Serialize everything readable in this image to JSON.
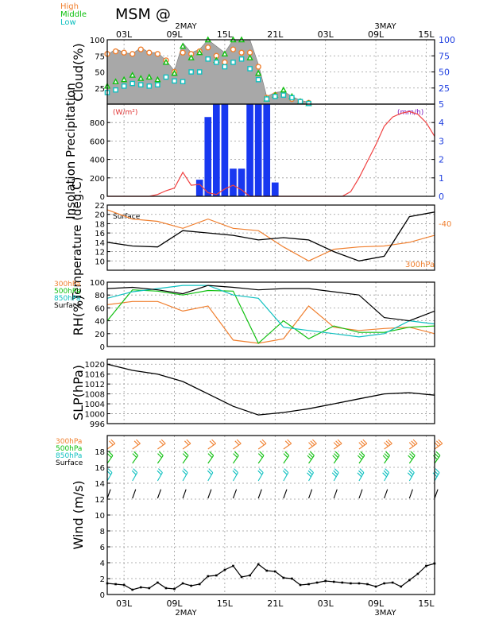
{
  "header": {
    "title": "MSM @",
    "day1_label": "2MAY",
    "day2_label": "3MAY"
  },
  "time_axis": {
    "hours_start": 0,
    "hours_end": 39,
    "top_ticks": [
      "03L",
      "09L",
      "15L",
      "21L",
      "03L",
      "09L",
      "15L"
    ],
    "bottom_ticks": [
      "03L",
      "09L",
      "15L",
      "21L",
      "03L",
      "09L",
      "15L"
    ]
  },
  "colors": {
    "high": "#f08030",
    "middle": "#10c010",
    "low": "#10c0c0",
    "surface": "#000000",
    "insolation": "#f04040",
    "precip": "#1838f0",
    "cloud_fill": "#a8a8a8",
    "right_axis": "#2040e0",
    "unit_left": "#e03030",
    "unit_right": "#8020c0"
  },
  "chart_data": [
    {
      "type": "area",
      "ylabel": "Cloud(%)",
      "ylim": [
        0,
        100
      ],
      "left_ticks": [
        "25",
        "50",
        "75",
        "100"
      ],
      "right_ticks": [
        "25",
        "50",
        "75",
        "100"
      ],
      "legend": [
        "High",
        "Middle",
        "Low"
      ],
      "hours": [
        0,
        1,
        2,
        3,
        4,
        5,
        6,
        7,
        8,
        9,
        10,
        11,
        12,
        13,
        14,
        15,
        16,
        17,
        18,
        19,
        20,
        21,
        22,
        23,
        24
      ],
      "total": [
        76,
        86,
        80,
        78,
        88,
        80,
        80,
        68,
        52,
        95,
        80,
        85,
        100,
        90,
        80,
        100,
        100,
        100,
        62,
        12,
        18,
        20,
        12,
        6,
        3
      ],
      "series": [
        {
          "name": "High",
          "values": [
            78,
            82,
            80,
            78,
            85,
            80,
            78,
            68,
            50,
            80,
            78,
            82,
            88,
            75,
            65,
            85,
            80,
            80,
            58,
            10,
            14,
            15,
            8,
            4,
            2
          ]
        },
        {
          "name": "Middle",
          "values": [
            28,
            35,
            38,
            45,
            40,
            42,
            38,
            65,
            48,
            90,
            72,
            80,
            100,
            68,
            78,
            100,
            100,
            72,
            48,
            8,
            14,
            22,
            12,
            4,
            1
          ]
        },
        {
          "name": "Low",
          "values": [
            18,
            22,
            28,
            32,
            30,
            28,
            30,
            42,
            36,
            35,
            50,
            50,
            70,
            65,
            58,
            65,
            70,
            55,
            38,
            8,
            12,
            14,
            10,
            4,
            1
          ]
        }
      ]
    },
    {
      "type": "bar",
      "ylabel": "Insolation Precipitation",
      "left_unit": "(W/m²)",
      "right_unit": "(mm/h)",
      "ylim_left": [
        0,
        1000
      ],
      "ylim_right": [
        0,
        5
      ],
      "left_ticks": [
        "0",
        "200",
        "400",
        "600",
        "800"
      ],
      "right_ticks": [
        "0",
        "1",
        "2",
        "3",
        "4",
        "5"
      ],
      "precip_hours": [
        11,
        12,
        13,
        14,
        15,
        16,
        17,
        18,
        19
      ],
      "precip_values": [
        0.9,
        4.3,
        5.0,
        5.1,
        1.5,
        1.5,
        5.4,
        5.2,
        5.0
      ],
      "precip_tail_hour": 20,
      "precip_tail_value": 0.75,
      "insolation_hours": [
        0,
        5,
        6,
        7,
        8,
        9,
        10,
        11,
        12,
        13,
        14,
        15,
        16,
        17,
        18,
        19,
        20,
        21,
        28,
        29,
        30,
        31,
        32,
        33,
        34,
        35,
        36,
        37,
        38,
        39
      ],
      "insolation_values": [
        0,
        0,
        20,
        60,
        90,
        260,
        120,
        130,
        40,
        20,
        80,
        120,
        70,
        0,
        0,
        0,
        0,
        0,
        0,
        50,
        200,
        380,
        560,
        760,
        860,
        900,
        920,
        890,
        800,
        650
      ]
    },
    {
      "type": "line",
      "ylabel": "Temperature (deg.C)",
      "ylim": [
        8,
        22
      ],
      "left_ticks": [
        "10",
        "12",
        "14",
        "16",
        "18",
        "20",
        "22"
      ],
      "legend_left": "Surface",
      "legend_right_value": "-40",
      "legend_bottom": "300hPa",
      "series": [
        {
          "name": "Surface",
          "hours": [
            0,
            3,
            6,
            9,
            12,
            15,
            18,
            21,
            24,
            27,
            30,
            33,
            36,
            39
          ],
          "values": [
            14,
            13.2,
            13,
            16.5,
            16,
            15.5,
            14.5,
            15,
            14.5,
            12,
            10,
            11,
            19.5,
            20.5
          ]
        },
        {
          "name": "300hPa",
          "hours": [
            0,
            3,
            6,
            9,
            12,
            15,
            18,
            21,
            24,
            27,
            30,
            33,
            36,
            39
          ],
          "values": [
            21,
            19,
            18.5,
            17,
            19,
            17,
            16.5,
            13,
            10,
            12.5,
            13,
            13.2,
            14,
            15.5
          ]
        }
      ]
    },
    {
      "type": "line",
      "ylabel": "RH(%)",
      "ylim": [
        0,
        100
      ],
      "left_ticks": [
        "0",
        "20",
        "40",
        "60",
        "80",
        "100"
      ],
      "legend": [
        "300hPa",
        "500hPa",
        "850hPa",
        "Surface"
      ],
      "hours": [
        0,
        3,
        6,
        9,
        12,
        15,
        18,
        21,
        24,
        27,
        30,
        33,
        36,
        39
      ],
      "series": [
        {
          "name": "300hPa",
          "values": [
            65,
            70,
            70,
            55,
            63,
            10,
            5,
            12,
            63,
            30,
            25,
            28,
            30,
            20
          ]
        },
        {
          "name": "500hPa",
          "values": [
            40,
            88,
            86,
            80,
            87,
            86,
            5,
            40,
            12,
            32,
            22,
            22,
            30,
            32
          ]
        },
        {
          "name": "850hPa",
          "values": [
            75,
            85,
            90,
            95,
            95,
            80,
            75,
            30,
            25,
            20,
            15,
            20,
            40,
            35
          ]
        },
        {
          "name": "Surface",
          "values": [
            90,
            92,
            88,
            82,
            95,
            92,
            88,
            90,
            90,
            85,
            80,
            45,
            40,
            55
          ]
        }
      ]
    },
    {
      "type": "line",
      "ylabel": "SLP(hPa)",
      "ylim": [
        996,
        1022
      ],
      "left_ticks": [
        "996",
        "1000",
        "1004",
        "1008",
        "1012",
        "1016",
        "1020"
      ],
      "series": [
        {
          "name": "SLP",
          "hours": [
            0,
            3,
            6,
            9,
            12,
            15,
            18,
            21,
            24,
            27,
            30,
            33,
            36,
            39
          ],
          "values": [
            1020,
            1017.5,
            1016,
            1013,
            1008,
            1003,
            999.5,
            1000.5,
            1002,
            1004,
            1006,
            1008,
            1008.5,
            1007.5
          ]
        }
      ]
    },
    {
      "type": "line",
      "ylabel": "Wind (m/s)",
      "ylim": [
        0,
        20
      ],
      "left_ticks": [
        "0",
        "2",
        "4",
        "6",
        "8",
        "10",
        "12",
        "14",
        "16",
        "18"
      ],
      "legend": [
        "300hPa",
        "500hPa",
        "850hPa",
        "Surface"
      ],
      "series": [
        {
          "name": "Surface",
          "hours": [
            0,
            1,
            2,
            3,
            4,
            5,
            6,
            7,
            8,
            9,
            10,
            11,
            12,
            13,
            14,
            15,
            16,
            17,
            18,
            19,
            20,
            21,
            22,
            23,
            24,
            25,
            26,
            27,
            28,
            29,
            30,
            31,
            32,
            33,
            34,
            35,
            36,
            37,
            38,
            39
          ],
          "values": [
            1.4,
            1.3,
            1.2,
            0.6,
            0.9,
            0.8,
            1.5,
            0.8,
            0.7,
            1.4,
            1.1,
            1.3,
            2.3,
            2.4,
            3.1,
            3.6,
            2.2,
            2.4,
            3.8,
            3.0,
            2.9,
            2.1,
            2.0,
            1.2,
            1.3,
            1.5,
            1.7,
            1.6,
            1.5,
            1.4,
            1.4,
            1.3,
            1.0,
            1.4,
            1.5,
            1.0,
            1.8,
            2.6,
            3.6,
            3.9
          ]
        }
      ]
    }
  ]
}
